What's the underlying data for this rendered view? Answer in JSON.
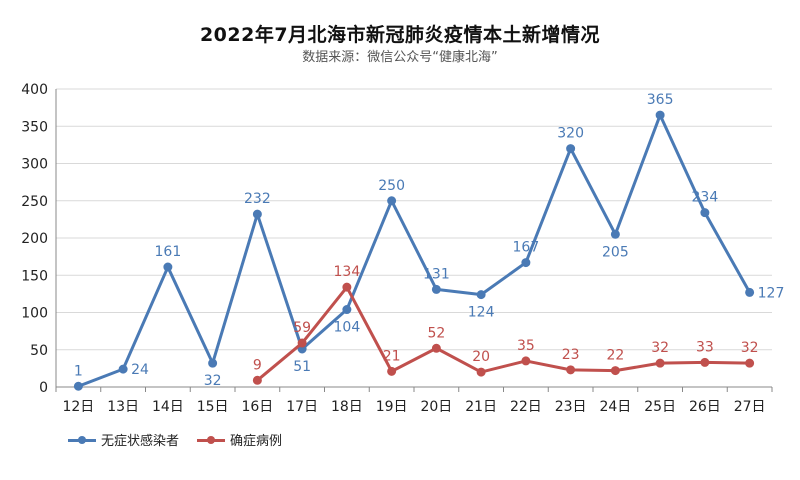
{
  "chart_data": {
    "type": "line",
    "title": "2022年7月北海市新冠肺炎疫情本土新增情况",
    "subtitle": "数据来源：微信公众号“健康北海”",
    "x": [
      "12日",
      "13日",
      "14日",
      "15日",
      "16日",
      "17日",
      "18日",
      "19日",
      "20日",
      "21日",
      "22日",
      "23日",
      "24日",
      "25日",
      "26日",
      "27日"
    ],
    "ylim": [
      0,
      400
    ],
    "yticks": [
      0,
      50,
      100,
      150,
      200,
      250,
      300,
      350,
      400
    ],
    "grid": true,
    "legend_position": "bottom-left",
    "series": [
      {
        "name": "无症状感染者",
        "color": "#4a7ab5",
        "values": [
          1,
          24,
          161,
          32,
          232,
          51,
          104,
          250,
          131,
          124,
          167,
          320,
          205,
          365,
          234,
          127
        ]
      },
      {
        "name": "确症病例",
        "color": "#c0504d",
        "values": [
          null,
          null,
          null,
          null,
          9,
          59,
          134,
          21,
          52,
          20,
          35,
          23,
          22,
          32,
          33,
          32
        ]
      }
    ]
  }
}
